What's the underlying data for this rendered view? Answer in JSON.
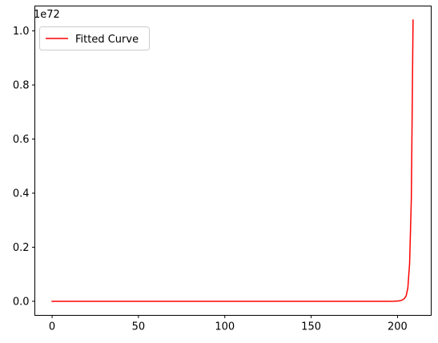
{
  "chart_data": {
    "type": "line",
    "title": "",
    "xlabel": "",
    "ylabel": "",
    "offset_label": "1e72",
    "xlim": [
      -10,
      219.5
    ],
    "ylim": [
      -0.052,
      1.092
    ],
    "xticks": [
      0,
      50,
      100,
      150,
      200
    ],
    "xtick_labels": [
      "0",
      "50",
      "100",
      "150",
      "200"
    ],
    "yticks": [
      0.0,
      0.2,
      0.4,
      0.6,
      0.8,
      1.0
    ],
    "ytick_labels": [
      "0.0",
      "0.2",
      "0.4",
      "0.6",
      "0.8",
      "1.0"
    ],
    "grid": false,
    "legend": {
      "position": "upper-left"
    },
    "series": [
      {
        "name": "Fitted Curve",
        "color": "#ff0000",
        "x": [
          0,
          10,
          20,
          30,
          40,
          50,
          60,
          70,
          80,
          90,
          100,
          110,
          120,
          130,
          140,
          150,
          160,
          170,
          180,
          190,
          195,
          198,
          200,
          201,
          202,
          203,
          204,
          205,
          206,
          207,
          208,
          209
        ],
        "y": [
          0,
          0,
          0,
          0,
          0,
          0,
          0,
          0,
          0,
          0,
          0,
          0,
          0,
          0,
          0,
          0,
          0,
          0,
          0,
          0,
          5e-05,
          0.0003,
          0.0009,
          0.0016,
          0.003,
          0.0056,
          0.0105,
          0.02,
          0.05,
          0.14,
          0.38,
          1.04
        ]
      }
    ]
  }
}
